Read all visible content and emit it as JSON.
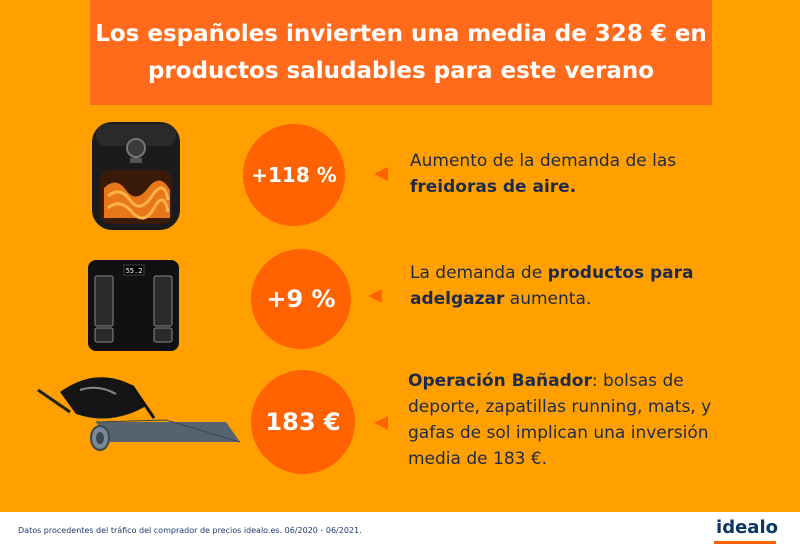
{
  "title": {
    "line1": "Los españoles invierten una media de 328 € en",
    "line2": "productos saludables para este verano"
  },
  "items": [
    {
      "image_icon": "air-fryer",
      "stat": "+118 %",
      "text_pre": "Aumento de la demanda de las",
      "text_bold": "freidoras de aire.",
      "text_post": ""
    },
    {
      "image_icon": "bathroom-scale",
      "scale_display": "55.2",
      "stat": "+9 %",
      "text_pre": "La demanda de ",
      "text_bold": "productos para adelgazar",
      "text_post": " aumenta."
    },
    {
      "image_icon": "sports-bag-and-yoga-mat",
      "stat": "183 €",
      "text_pre": "",
      "text_bold": "Operación Bañador",
      "text_post": ": bolsas de deporte, zapatillas running, mats, y gafas de sol implican una inversión media de 183 €."
    }
  ],
  "footer": {
    "note": "Datos procedentes del tráfico del comprador de precios idealo.es. 06/2020 - 06/2021.",
    "logo": "idealo"
  },
  "colors": {
    "background": "#ffa000",
    "title_box": "#ff6b1a",
    "accent": "#ff6200",
    "text_dark": "#1e2a4a"
  }
}
